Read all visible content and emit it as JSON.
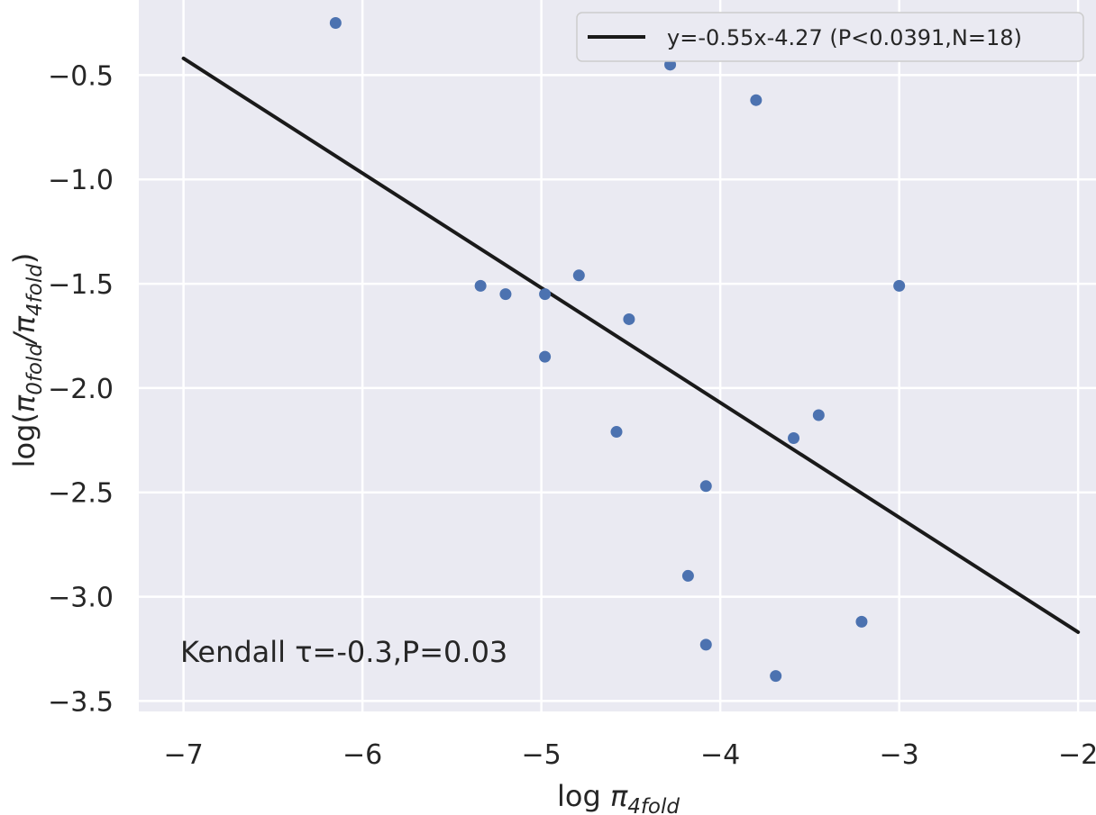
{
  "chart_data": {
    "type": "scatter",
    "xlabel": "log π4fold",
    "ylabel": "log(π0fold/π4fold)",
    "xlim": [
      -7.25,
      -1.9
    ],
    "ylim": [
      -3.55,
      -0.14
    ],
    "x_ticks": [
      -7,
      -6,
      -5,
      -4,
      -3,
      -2
    ],
    "x_tick_labels": [
      "−7",
      "−6",
      "−5",
      "−4",
      "−3",
      "−2"
    ],
    "y_ticks": [
      -0.5,
      -1.0,
      -1.5,
      -2.0,
      -2.5,
      -3.0,
      -3.5
    ],
    "y_tick_labels": [
      "−0.5",
      "−1.0",
      "−1.5",
      "−2.0",
      "−2.5",
      "−3.0",
      "−3.5"
    ],
    "grid": true,
    "legend_position": "top-right",
    "points": [
      {
        "x": -6.15,
        "y": -0.25
      },
      {
        "x": -4.28,
        "y": -0.45
      },
      {
        "x": -3.8,
        "y": -0.62
      },
      {
        "x": -5.34,
        "y": -1.51
      },
      {
        "x": -5.2,
        "y": -1.55
      },
      {
        "x": -4.98,
        "y": -1.55
      },
      {
        "x": -4.79,
        "y": -1.46
      },
      {
        "x": -4.51,
        "y": -1.67
      },
      {
        "x": -4.98,
        "y": -1.85
      },
      {
        "x": -3.0,
        "y": -1.51
      },
      {
        "x": -4.58,
        "y": -2.21
      },
      {
        "x": -3.45,
        "y": -2.13
      },
      {
        "x": -3.59,
        "y": -2.24
      },
      {
        "x": -4.08,
        "y": -2.47
      },
      {
        "x": -4.18,
        "y": -2.9
      },
      {
        "x": -3.21,
        "y": -3.12
      },
      {
        "x": -4.08,
        "y": -3.23
      },
      {
        "x": -3.69,
        "y": -3.38
      }
    ],
    "fit_line": {
      "label": "y=-0.55x-4.27 (P<0.0391,N=18)",
      "x_start": -7,
      "y_start": -0.42,
      "x_end": -2,
      "y_end": -3.17
    },
    "annotation": "Kendall τ=-0.3,P=0.03"
  },
  "colors": {
    "background": "#eaeaf2",
    "grid": "#ffffff",
    "points": "#4c72b0",
    "fit_line": "#1a1a1a"
  }
}
